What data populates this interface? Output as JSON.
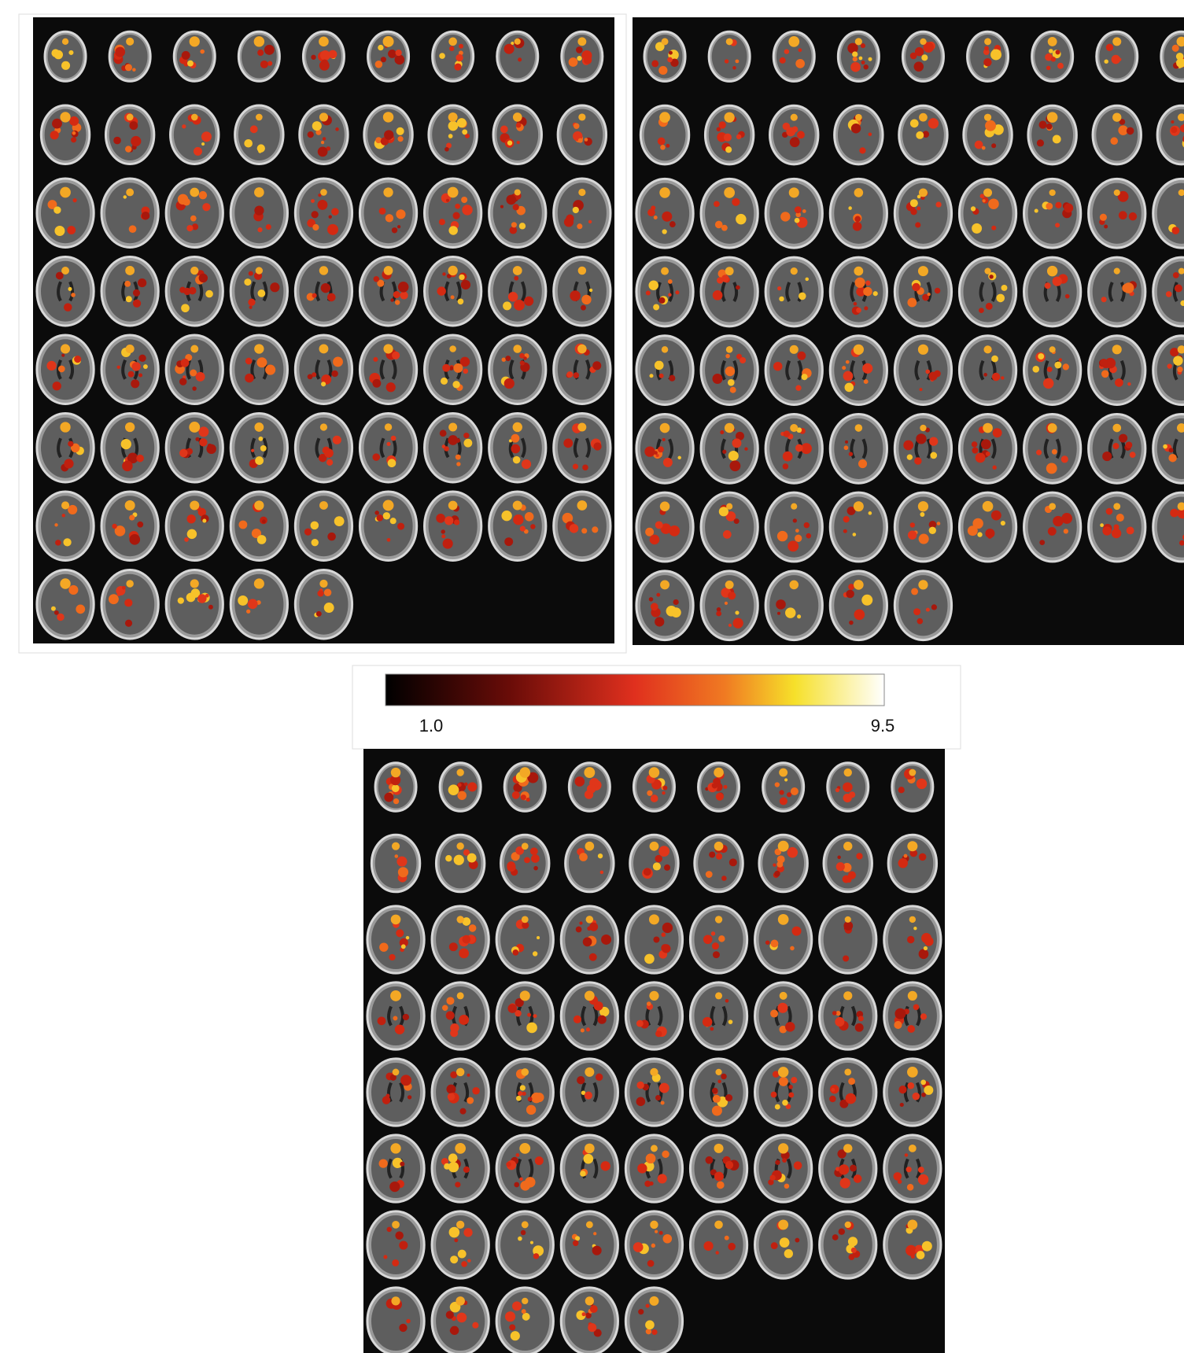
{
  "colorbar": {
    "min_label": "1.0",
    "max_label": "9.5"
  }
}
